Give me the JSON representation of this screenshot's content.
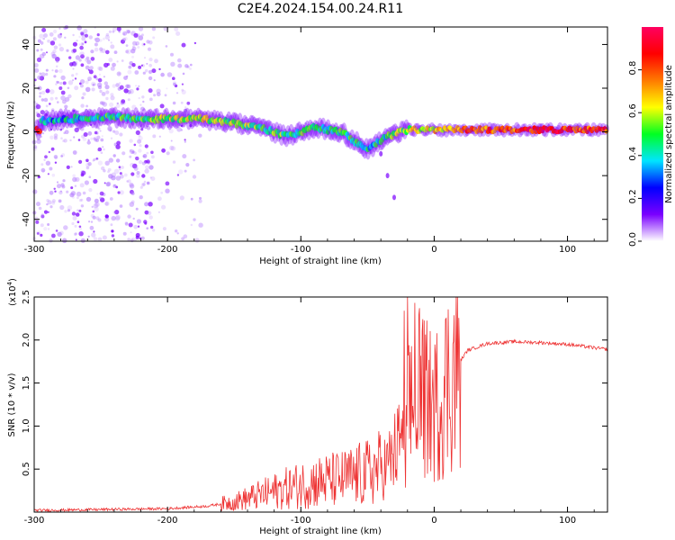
{
  "title": "C2E4.2024.154.00.24.R11",
  "chart_data": [
    {
      "type": "heatmap",
      "xlabel": "Height of straight line (km)",
      "ylabel": "Frequency (Hz)",
      "xlim": [
        -300,
        130
      ],
      "ylim": [
        -50,
        48
      ],
      "x_ticks": [
        -300,
        -200,
        -100,
        0,
        100
      ],
      "x_tick_labels": [
        "-300",
        "-200",
        "-100",
        "0",
        "100"
      ],
      "y_ticks": [
        40,
        20,
        0,
        -20,
        -40
      ],
      "y_tick_labels": [
        "40",
        "20",
        "0",
        "-20",
        "-40"
      ],
      "colorbar": {
        "label": "Normalized spectral amplitude",
        "range": [
          0,
          1
        ],
        "ticks": [
          0.0,
          0.2,
          0.4,
          0.6,
          0.8
        ],
        "tick_labels": [
          "0.0",
          "0.2",
          "0.4",
          "0.6",
          "0.8"
        ],
        "colormap": [
          "#ffffff",
          "#7a00ff",
          "#0000ff",
          "#00e5ff",
          "#00ff22",
          "#ffff00",
          "#ff7a00",
          "#ff0000",
          "#ff0060"
        ]
      },
      "signal_track": [
        {
          "x": -295,
          "freq": 5,
          "amp": 0.35
        },
        {
          "x": -270,
          "freq": 6,
          "amp": 0.4
        },
        {
          "x": -245,
          "freq": 7,
          "amp": 0.45
        },
        {
          "x": -220,
          "freq": 6,
          "amp": 0.5
        },
        {
          "x": -195,
          "freq": 6,
          "amp": 0.55
        },
        {
          "x": -175,
          "freq": 6,
          "amp": 0.6
        },
        {
          "x": -150,
          "freq": 4,
          "amp": 0.55
        },
        {
          "x": -130,
          "freq": 2,
          "amp": 0.5
        },
        {
          "x": -110,
          "freq": -2,
          "amp": 0.5
        },
        {
          "x": -90,
          "freq": 2,
          "amp": 0.45
        },
        {
          "x": -70,
          "freq": 0,
          "amp": 0.45
        },
        {
          "x": -50,
          "freq": -8,
          "amp": 0.4
        },
        {
          "x": -35,
          "freq": -2,
          "amp": 0.45
        },
        {
          "x": -20,
          "freq": 1,
          "amp": 0.6
        },
        {
          "x": 0,
          "freq": 1,
          "amp": 0.65
        },
        {
          "x": 20,
          "freq": 1,
          "amp": 0.75
        },
        {
          "x": 40,
          "freq": 1,
          "amp": 0.8
        },
        {
          "x": 60,
          "freq": 1,
          "amp": 0.8
        },
        {
          "x": 80,
          "freq": 1,
          "amp": 0.9
        },
        {
          "x": 95,
          "freq": 1,
          "amp": 0.88
        },
        {
          "x": 110,
          "freq": 1,
          "amp": 0.82
        },
        {
          "x": 125,
          "freq": 1,
          "amp": 0.8
        }
      ],
      "drift_branch": [
        {
          "x": -40,
          "freq": -10
        },
        {
          "x": -35,
          "freq": -20
        },
        {
          "x": -30,
          "freq": -30
        }
      ]
    },
    {
      "type": "line",
      "xlabel": "Height of straight line (km)",
      "ylabel": "SNR (10 * v/v)",
      "y_scale_label": "(x10",
      "y_scale_exponent": "4",
      "xlim": [
        -300,
        130
      ],
      "ylim": [
        0,
        2.5
      ],
      "x_ticks": [
        -300,
        -200,
        -100,
        0,
        100
      ],
      "x_tick_labels": [
        "-300",
        "-200",
        "-100",
        "0",
        "100"
      ],
      "y_ticks": [
        0.5,
        1.0,
        1.5,
        2.0,
        2.5
      ],
      "y_tick_labels": [
        "0.5",
        "1.0",
        "1.5",
        "2.0",
        "2.5"
      ],
      "series": [
        {
          "color": "#ee3333",
          "envelope": [
            {
              "x": -300,
              "y": 0.02
            },
            {
              "x": -250,
              "y": 0.03
            },
            {
              "x": -200,
              "y": 0.04
            },
            {
              "x": -170,
              "y": 0.07
            },
            {
              "x": -150,
              "y": 0.12
            },
            {
              "x": -130,
              "y": 0.2
            },
            {
              "x": -110,
              "y": 0.28
            },
            {
              "x": -90,
              "y": 0.35
            },
            {
              "x": -70,
              "y": 0.38
            },
            {
              "x": -50,
              "y": 0.45
            },
            {
              "x": -35,
              "y": 0.55
            },
            {
              "x": -25,
              "y": 0.8
            },
            {
              "x": -18,
              "y": 1.2
            },
            {
              "x": -10,
              "y": 1.35
            },
            {
              "x": 0,
              "y": 1.2
            },
            {
              "x": 8,
              "y": 1.45
            },
            {
              "x": 15,
              "y": 1.65
            },
            {
              "x": 25,
              "y": 1.88
            },
            {
              "x": 40,
              "y": 1.96
            },
            {
              "x": 60,
              "y": 1.98
            },
            {
              "x": 80,
              "y": 1.97
            },
            {
              "x": 100,
              "y": 1.95
            },
            {
              "x": 115,
              "y": 1.92
            },
            {
              "x": 130,
              "y": 1.89
            }
          ]
        }
      ]
    }
  ]
}
